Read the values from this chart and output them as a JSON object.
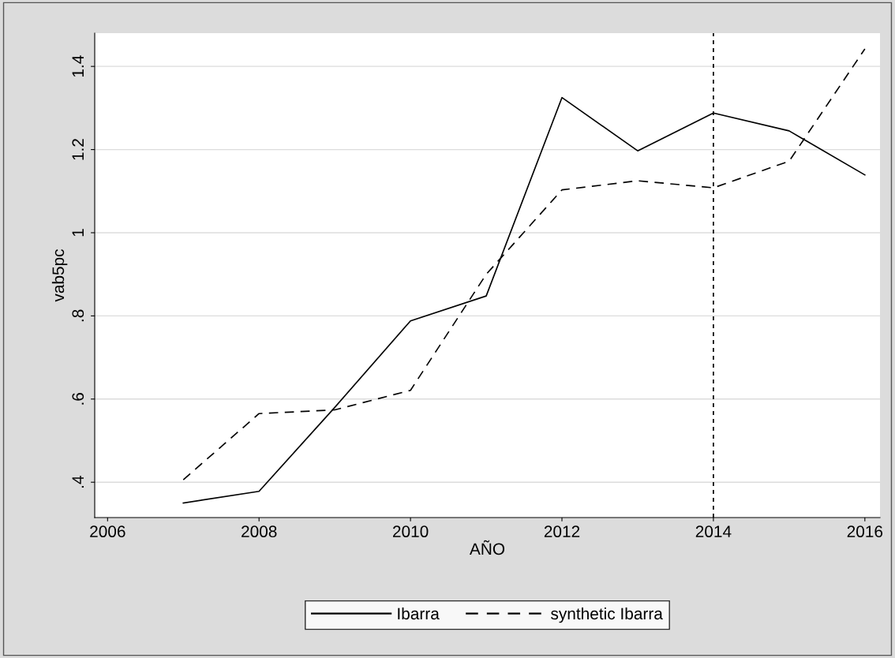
{
  "chart_data": {
    "type": "line",
    "xlabel": "AÑO",
    "ylabel": "vab5pc",
    "x": [
      2007,
      2008,
      2009,
      2010,
      2011,
      2012,
      2013,
      2014,
      2015,
      2016
    ],
    "series": [
      {
        "name": "Ibarra",
        "color": "#000000",
        "line_style": "solid",
        "values": [
          0.35,
          0.378,
          0.58,
          0.788,
          0.848,
          1.325,
          1.197,
          1.288,
          1.245,
          1.139
        ]
      },
      {
        "name": "synthetic Ibarra",
        "color": "#000000",
        "line_style": "dashed",
        "values": [
          0.406,
          0.565,
          0.574,
          0.621,
          0.9,
          1.103,
          1.125,
          1.108,
          1.172,
          1.442
        ]
      }
    ],
    "xlim": [
      2005.83,
      2016.2
    ],
    "xticks": [
      2006,
      2008,
      2010,
      2012,
      2014,
      2016
    ],
    "ylim": [
      0.315,
      1.48
    ],
    "yticks": [
      {
        "value": 0.4,
        "label": ".4"
      },
      {
        "value": 0.6,
        "label": ".6"
      },
      {
        "value": 0.8,
        "label": ".8"
      },
      {
        "value": 1,
        "label": "1"
      },
      {
        "value": 1.2,
        "label": "1.2"
      },
      {
        "value": 1.4,
        "label": "1.4"
      }
    ],
    "ref_lines": [
      {
        "axis": "x",
        "value": 2014,
        "color": "#000000",
        "line_style": "dotted"
      }
    ],
    "grid": "y",
    "legend": "bottom",
    "marker": "none"
  }
}
